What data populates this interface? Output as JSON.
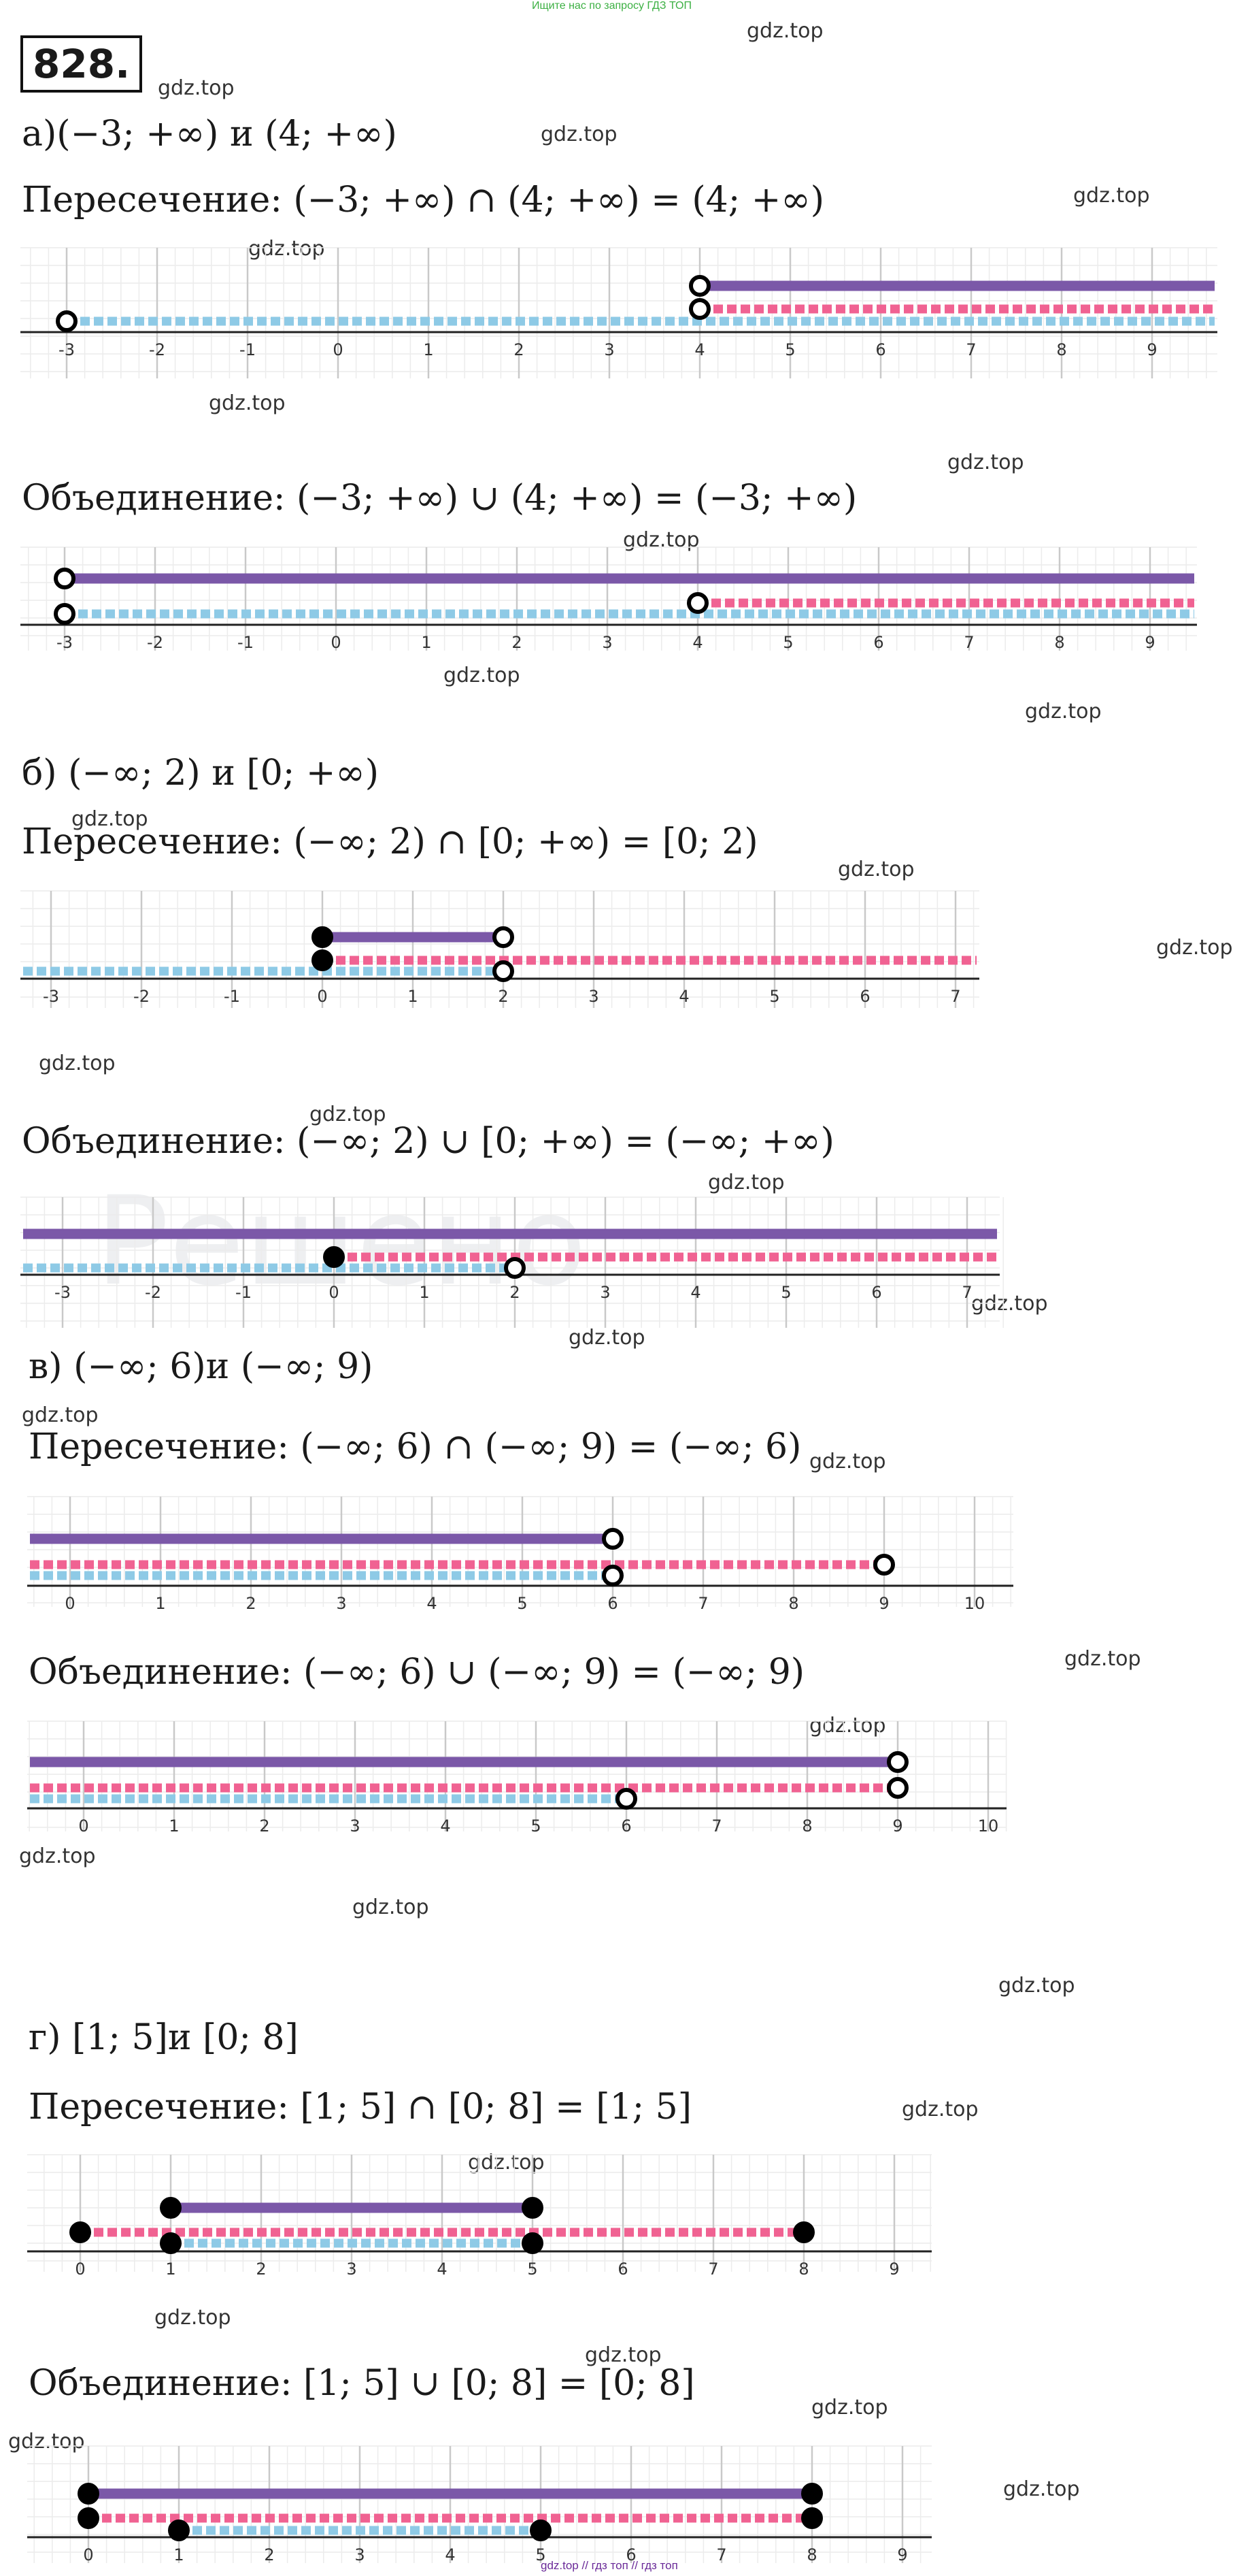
{
  "header": {
    "top_note": "Ищите нас по запросу ГДЗ ТОП",
    "problem_number": "828.",
    "bottom_note": "gdz.top // гдз топ // гдз топ"
  },
  "watermark": "gdz.top",
  "sections": {
    "a": {
      "heading": "а)(−3; +∞) и (4; +∞)",
      "intersection": "Пересечение: (−3; +∞) ∩  (4; +∞) = (4; +∞)",
      "union": "Объединение: (−3; +∞) ∪ (4; +∞) = (−3; +∞)"
    },
    "b": {
      "heading": "б) (−∞; 2) и  [0; +∞)",
      "intersection": "Пересечение: (−∞; 2)  ∩   [0; +∞) = [0; 2)",
      "union": "Объединение: (−∞; 2) ∪ [0; +∞)  = (−∞; +∞)"
    },
    "v": {
      "heading": "в)  (−∞; 6)и (−∞; 9)",
      "intersection": "Пересечение: (−∞; 6) ∩  (−∞; 9) = (−∞; 6)",
      "union": "Объединение: (−∞; 6) ∪ (−∞; 9) = (−∞; 9)"
    },
    "g": {
      "heading": "г) [1; 5]и [0; 8]",
      "intersection": "Пересечение: [1; 5] ∩  [0; 8] = [1; 5]",
      "union": "Объединение: [1; 5] ∪  [0; 8] = [0; 8]"
    }
  },
  "colors": {
    "result": "#7b58a8",
    "first": "#8ecae6",
    "second": "#f06292",
    "grid_major": "#c9c9c9",
    "grid_minor": "#ececec"
  },
  "axes": [
    {
      "id": "a-int",
      "ticks": [
        "-3",
        "-2",
        "-1",
        "0",
        "1",
        "2",
        "3",
        "4",
        "5",
        "6",
        "7",
        "8",
        "9"
      ]
    },
    {
      "id": "a-uni",
      "ticks": [
        "-3",
        "-2",
        "-1",
        "0",
        "1",
        "2",
        "3",
        "4",
        "5",
        "6",
        "7",
        "8",
        "9"
      ]
    },
    {
      "id": "b-int",
      "ticks": [
        "-3",
        "-2",
        "-1",
        "0",
        "1",
        "2",
        "3",
        "4",
        "5",
        "6",
        "7"
      ]
    },
    {
      "id": "b-uni",
      "ticks": [
        "-3",
        "-2",
        "-1",
        "0",
        "1",
        "2",
        "3",
        "4",
        "5",
        "6",
        "7"
      ]
    },
    {
      "id": "v-int",
      "ticks": [
        "0",
        "1",
        "2",
        "3",
        "4",
        "5",
        "6",
        "7",
        "8",
        "9",
        "10"
      ]
    },
    {
      "id": "v-uni",
      "ticks": [
        "0",
        "1",
        "2",
        "3",
        "4",
        "5",
        "6",
        "7",
        "8",
        "9",
        "10"
      ]
    },
    {
      "id": "g-int",
      "ticks": [
        "0",
        "1",
        "2",
        "3",
        "4",
        "5",
        "6",
        "7",
        "8",
        "9"
      ]
    },
    {
      "id": "g-uni",
      "ticks": [
        "0",
        "1",
        "2",
        "3",
        "4",
        "5",
        "6",
        "7",
        "8",
        "9"
      ]
    }
  ]
}
